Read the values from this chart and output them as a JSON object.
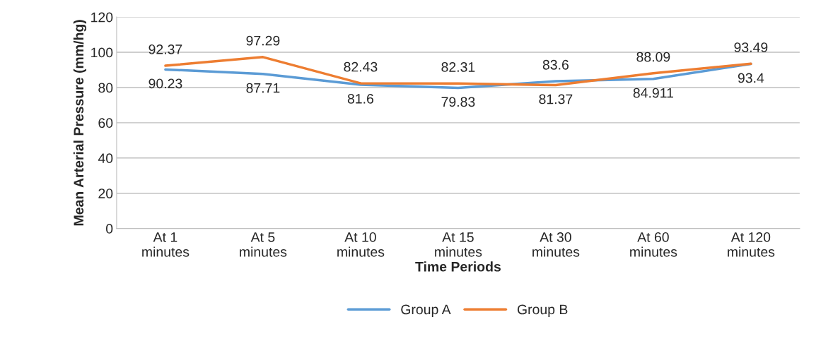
{
  "chart_data": {
    "type": "line",
    "xlabel": "Time Periods",
    "ylabel": "Mean Arterial Pressure (mm/hg)",
    "categories": [
      "At 1\nminutes",
      "At 5\nminutes",
      "At 10\nminutes",
      "At 15\nminutes",
      "At 30\nminutes",
      "At 60\nminutes",
      "At 120\nminutes"
    ],
    "series": [
      {
        "name": "Group A",
        "color": "#5b9bd5",
        "values": [
          90.23,
          87.71,
          81.6,
          79.83,
          83.6,
          84.911,
          93.4
        ]
      },
      {
        "name": "Group B",
        "color": "#ed7d31",
        "values": [
          92.37,
          97.29,
          82.43,
          82.31,
          81.37,
          88.09,
          93.49
        ]
      }
    ],
    "ylim": [
      0,
      120
    ],
    "yticks": [
      0,
      20,
      40,
      60,
      80,
      100,
      120
    ],
    "grid": "y",
    "legend": "bottom",
    "data_labels": true,
    "marker": "none",
    "line_style": "solid"
  }
}
